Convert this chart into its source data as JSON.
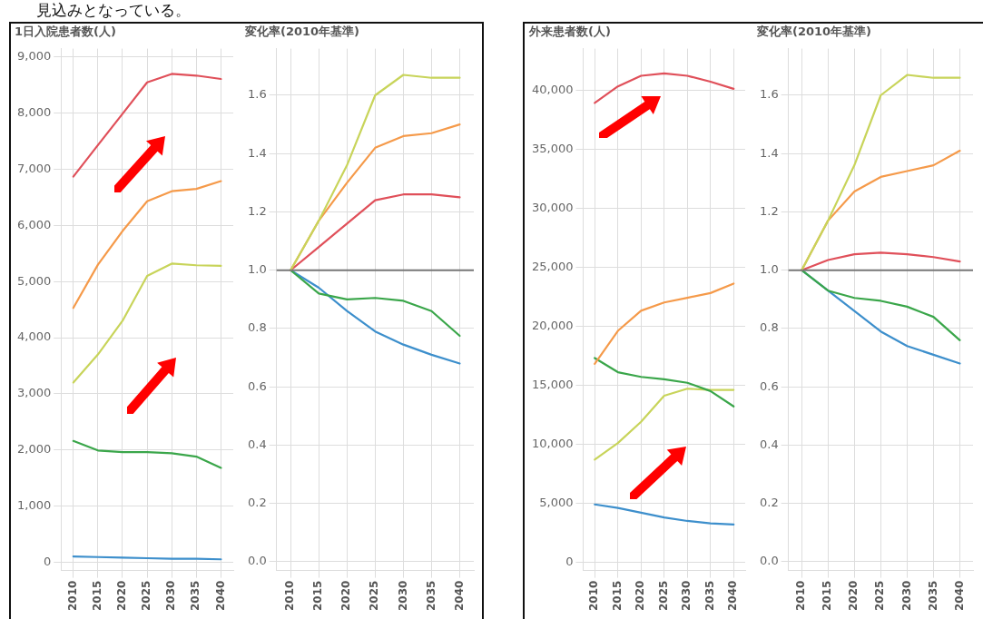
{
  "chart_data": [
    {
      "type": "line",
      "title": "1日入院患者数(人)",
      "annotations": [
        "見込みとなっている。"
      ],
      "categories": [
        "2010",
        "2015",
        "2020",
        "2025",
        "2030",
        "2035",
        "2040"
      ],
      "series": [
        {
          "color": "#e0505a",
          "values": [
            6870,
            7430,
            7990,
            8550,
            8700,
            8670,
            8610
          ]
        },
        {
          "color": "#f59a4a",
          "values": [
            4530,
            5300,
            5900,
            6430,
            6610,
            6650,
            6790
          ]
        },
        {
          "color": "#c8d45a",
          "values": [
            3200,
            3700,
            4300,
            5100,
            5320,
            5290,
            5280
          ]
        },
        {
          "color": "#3aa64a",
          "values": [
            2160,
            1990,
            1960,
            1960,
            1940,
            1880,
            1680
          ]
        },
        {
          "color": "#3d8fcc",
          "values": [
            100,
            90,
            80,
            70,
            60,
            60,
            50
          ]
        }
      ],
      "ylim": [
        -150,
        9150
      ],
      "yticks": [
        {
          "value": 0,
          "label": "0"
        },
        {
          "value": 1000,
          "label": "1,000"
        },
        {
          "value": 2000,
          "label": "2,000"
        },
        {
          "value": 3000,
          "label": "3,000"
        },
        {
          "value": 4000,
          "label": "4,000"
        },
        {
          "value": 5000,
          "label": "5,000"
        },
        {
          "value": 6000,
          "label": "6,000"
        },
        {
          "value": 7000,
          "label": "7,000"
        },
        {
          "value": 8000,
          "label": "8,000"
        },
        {
          "value": 9000,
          "label": "9,000"
        }
      ],
      "grid": true,
      "marker": "none",
      "line_style": "solid",
      "legend": false
    },
    {
      "type": "line",
      "title": "変化率(2010年基準)",
      "categories": [
        "2010",
        "2015",
        "2020",
        "2025",
        "2030",
        "2035",
        "2040"
      ],
      "series": [
        {
          "color": "#c8d45a",
          "values": [
            1,
            1.17,
            1.36,
            1.6,
            1.67,
            1.66,
            1.66
          ]
        },
        {
          "color": "#f59a4a",
          "values": [
            1,
            1.17,
            1.3,
            1.42,
            1.46,
            1.47,
            1.5
          ]
        },
        {
          "color": "#e0505a",
          "values": [
            1,
            1.08,
            1.16,
            1.24,
            1.26,
            1.26,
            1.25
          ]
        },
        {
          "color": "#3aa64a",
          "values": [
            1,
            0.92,
            0.9,
            0.905,
            0.895,
            0.86,
            0.775
          ]
        },
        {
          "color": "#3d8fcc",
          "values": [
            1,
            0.94,
            0.86,
            0.79,
            0.745,
            0.71,
            0.68
          ]
        }
      ],
      "ylim": [
        -0.03,
        1.76
      ],
      "yticks": [
        {
          "value": 0,
          "label": "0.0"
        },
        {
          "value": 0.2,
          "label": "0.2"
        },
        {
          "value": 0.4,
          "label": "0.4"
        },
        {
          "value": 0.6,
          "label": "0.6"
        },
        {
          "value": 0.8,
          "label": "0.8"
        },
        {
          "value": 1,
          "label": "1.0"
        },
        {
          "value": 1.2,
          "label": "1.2"
        },
        {
          "value": 1.4,
          "label": "1.4"
        },
        {
          "value": 1.6,
          "label": "1.6"
        }
      ],
      "ref_lines": [
        {
          "axis": "y",
          "value": 1,
          "color": "#777777"
        }
      ],
      "grid": true,
      "marker": "none",
      "line_style": "solid",
      "legend": false
    },
    {
      "type": "line",
      "title": "外来患者数(人)",
      "categories": [
        "2010",
        "2015",
        "2020",
        "2025",
        "2030",
        "2035",
        "2040"
      ],
      "series": [
        {
          "color": "#e0505a",
          "values": [
            38900,
            40300,
            41200,
            41400,
            41200,
            40700,
            40100
          ]
        },
        {
          "color": "#f59a4a",
          "values": [
            16800,
            19600,
            21300,
            22000,
            22400,
            22800,
            23600
          ]
        },
        {
          "color": "#3aa64a",
          "values": [
            17300,
            16100,
            15700,
            15500,
            15200,
            14500,
            13200
          ]
        },
        {
          "color": "#c8d45a",
          "values": [
            8700,
            10100,
            11900,
            14100,
            14700,
            14600,
            14600
          ]
        },
        {
          "color": "#3d8fcc",
          "values": [
            4900,
            4600,
            4200,
            3800,
            3500,
            3300,
            3200
          ]
        }
      ],
      "ylim": [
        -700,
        43500
      ],
      "yticks": [
        {
          "value": 0,
          "label": "0"
        },
        {
          "value": 5000,
          "label": "5,000"
        },
        {
          "value": 10000,
          "label": "10,000"
        },
        {
          "value": 15000,
          "label": "15,000"
        },
        {
          "value": 20000,
          "label": "20,000"
        },
        {
          "value": 25000,
          "label": "25,000"
        },
        {
          "value": 30000,
          "label": "30,000"
        },
        {
          "value": 35000,
          "label": "35,000"
        },
        {
          "value": 40000,
          "label": "40,000"
        }
      ],
      "grid": true,
      "marker": "none",
      "line_style": "solid",
      "legend": false
    },
    {
      "type": "line",
      "title": "変化率(2010年基準)",
      "categories": [
        "2010",
        "2015",
        "2020",
        "2025",
        "2030",
        "2035",
        "2040"
      ],
      "series": [
        {
          "color": "#c8d45a",
          "values": [
            1,
            1.17,
            1.36,
            1.6,
            1.67,
            1.66,
            1.66
          ]
        },
        {
          "color": "#f59a4a",
          "values": [
            1,
            1.17,
            1.27,
            1.32,
            1.34,
            1.36,
            1.41
          ]
        },
        {
          "color": "#e0505a",
          "values": [
            1,
            1.035,
            1.055,
            1.06,
            1.055,
            1.045,
            1.03
          ]
        },
        {
          "color": "#3aa64a",
          "values": [
            1,
            0.93,
            0.905,
            0.895,
            0.875,
            0.84,
            0.76
          ]
        },
        {
          "color": "#3d8fcc",
          "values": [
            1,
            0.93,
            0.86,
            0.79,
            0.74,
            0.71,
            0.68
          ]
        }
      ],
      "ylim": [
        -0.03,
        1.76
      ],
      "yticks": [
        {
          "value": 0,
          "label": "0.0"
        },
        {
          "value": 0.2,
          "label": "0.2"
        },
        {
          "value": 0.4,
          "label": "0.4"
        },
        {
          "value": 0.6,
          "label": "0.6"
        },
        {
          "value": 0.8,
          "label": "0.8"
        },
        {
          "value": 1,
          "label": "1.0"
        },
        {
          "value": 1.2,
          "label": "1.2"
        },
        {
          "value": 1.4,
          "label": "1.4"
        },
        {
          "value": 1.6,
          "label": "1.6"
        }
      ],
      "ref_lines": [
        {
          "axis": "y",
          "value": 1,
          "color": "#777777"
        }
      ],
      "grid": true,
      "marker": "none",
      "line_style": "solid",
      "legend": false
    }
  ]
}
